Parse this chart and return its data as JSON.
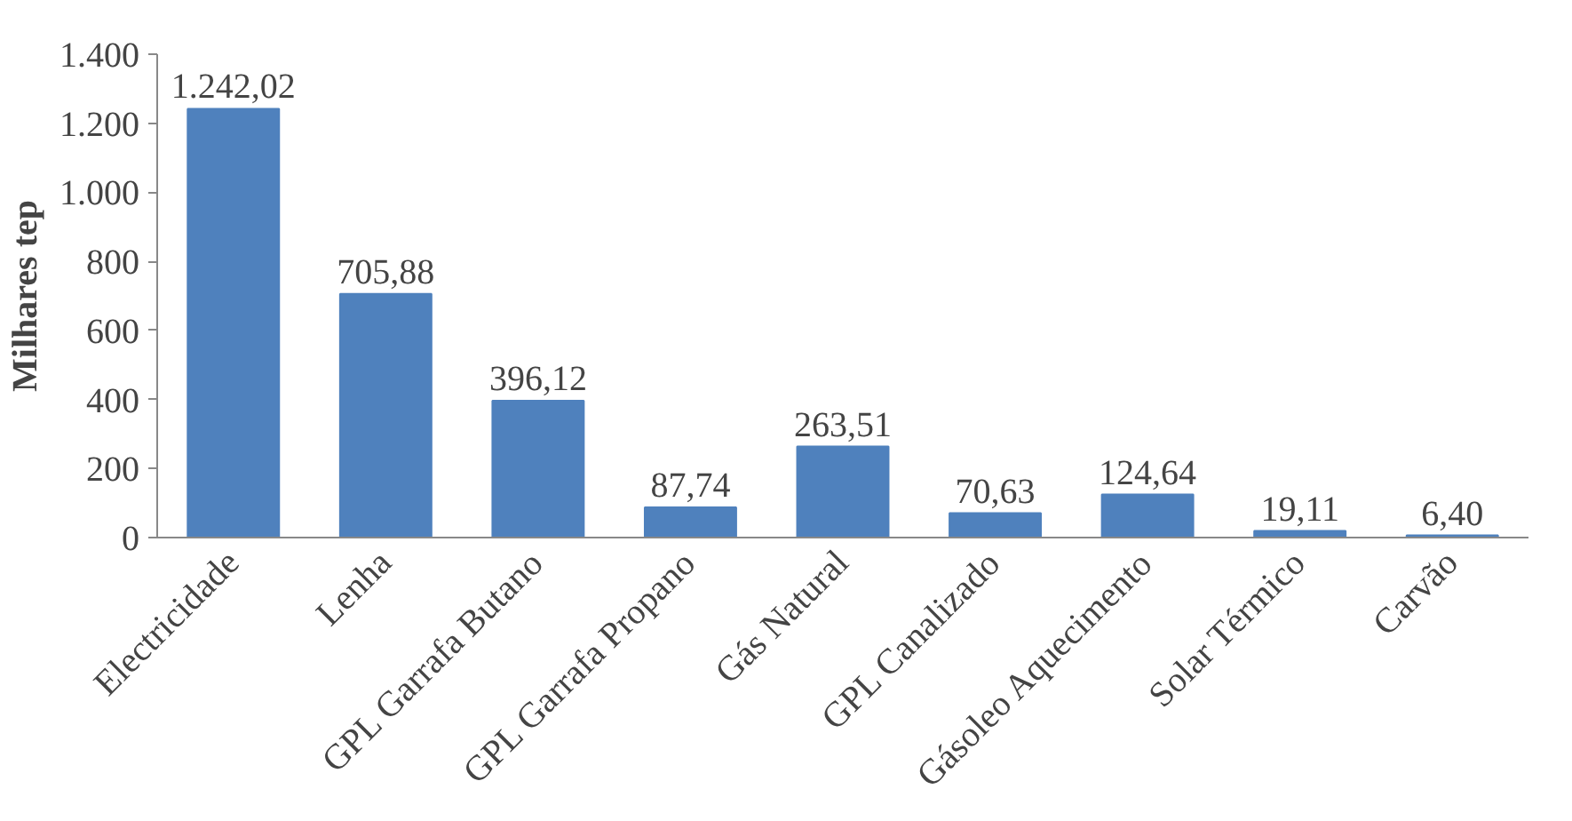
{
  "chart_data": {
    "type": "bar",
    "ylabel": "Milhares tep",
    "categories": [
      "Electricidade",
      "Lenha",
      "GPL Garrafa Butano",
      "GPL Garrafa Propano",
      "Gás Natural",
      "GPL Canalizado",
      "Gásoleo Aquecimento",
      "Solar Térmico",
      "Carvão"
    ],
    "values": [
      1242.02,
      705.88,
      396.12,
      87.74,
      263.51,
      70.63,
      124.64,
      19.11,
      6.4
    ],
    "value_labels": [
      "1.242,02",
      "705,88",
      "396,12",
      "87,74",
      "263,51",
      "70,63",
      "124,64",
      "19,11",
      "6,40"
    ],
    "color": "#4f81bd",
    "ylim": [
      0,
      1400
    ],
    "yticks": [
      0,
      {
        "value": 200,
        "label": "200"
      },
      {
        "value": 400,
        "label": "400"
      },
      {
        "value": 600,
        "label": "600"
      },
      {
        "value": 800,
        "label": "800"
      },
      {
        "value": 1000,
        "label": "1.000"
      },
      {
        "value": 1200,
        "label": "1.200"
      },
      {
        "value": 1400,
        "label": "1.400"
      }
    ],
    "grid": false
  }
}
